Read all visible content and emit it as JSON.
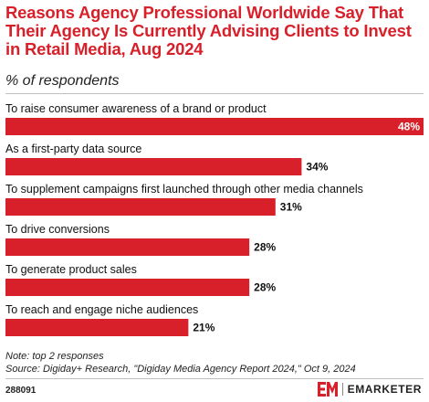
{
  "header": {
    "title": "Reasons Agency Professional Worldwide Say That Their Agency Is Currently Advising Clients to Invest in Retail Media, Aug 2024",
    "subtitle": "% of respondents"
  },
  "chart_data": {
    "type": "bar",
    "orientation": "horizontal",
    "categories": [
      "To raise consumer awareness of a brand or product",
      "As a first-party data source",
      "To supplement campaigns first launched through other media channels",
      "To drive conversions",
      "To generate product sales",
      "To reach and engage niche audiences"
    ],
    "values": [
      48,
      34,
      31,
      28,
      28,
      21
    ],
    "value_labels": [
      "48%",
      "34%",
      "31%",
      "28%",
      "28%",
      "21%"
    ],
    "xlim": [
      0,
      48
    ],
    "grid": false,
    "bar_color": "#d8202a"
  },
  "footer": {
    "note": "Note: top 2 responses",
    "source": "Source: Digiday+ Research, \"Digiday Media Agency Report 2024,\" Oct 9, 2024",
    "chart_id": "288091",
    "brand_name": "EMARKETER",
    "brand_icon": "emarketer-logo-icon",
    "brand_color": "#d8202a"
  }
}
